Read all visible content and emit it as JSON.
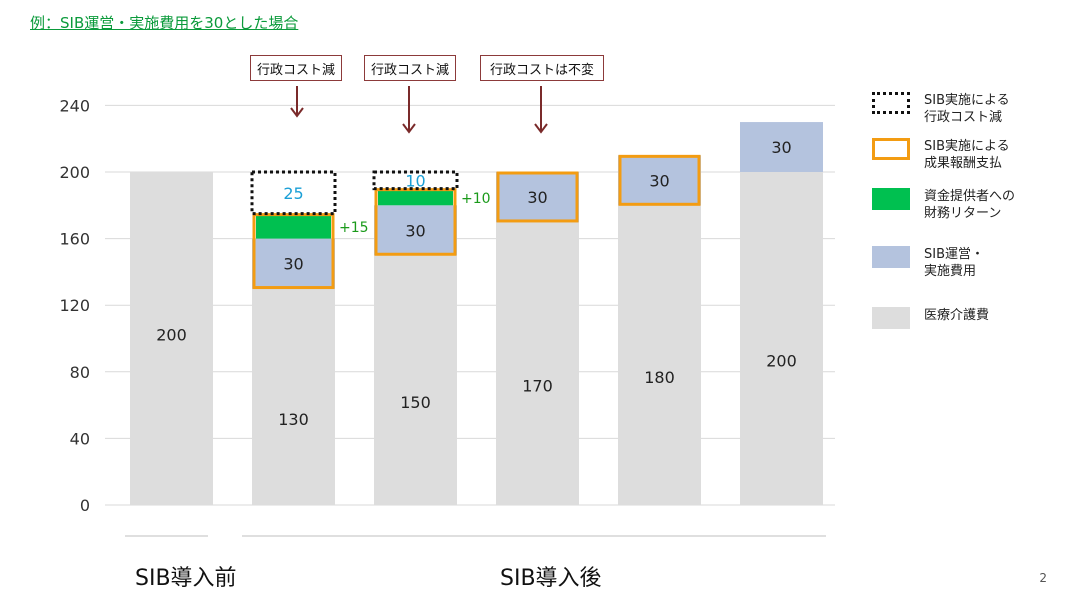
{
  "title": "例：SIB運営・実施費用を30とした場合",
  "page_number": "2",
  "group_labels": [
    "SIB導入前",
    "SIB導入後"
  ],
  "callouts": [
    "行政コスト減",
    "行政コスト減",
    "行政コストは不変"
  ],
  "legend": [
    {
      "label_lines": [
        "SIB実施による",
        "行政コスト減"
      ],
      "style": "dotted-black"
    },
    {
      "label_lines": [
        "SIB実施による",
        "成果報酬支払"
      ],
      "style": "outline-orange"
    },
    {
      "label_lines": [
        "資金提供者への",
        "財務リターン"
      ],
      "style": "fill",
      "color": "#00c050"
    },
    {
      "label_lines": [
        "SIB運営・",
        "実施費用"
      ],
      "style": "fill",
      "color": "#b4c3de"
    },
    {
      "label_lines": [
        "医療介護費"
      ],
      "style": "fill",
      "color": "#dddddd"
    }
  ],
  "chart_data": {
    "type": "bar",
    "stacked": true,
    "ylim": [
      0,
      240
    ],
    "yticks": [
      "0",
      "40",
      "80",
      "120",
      "160",
      "200",
      "240"
    ],
    "grid": true,
    "legend_position": "right",
    "colors": {
      "medical": "#dddddd",
      "sib": "#b4c3de",
      "return": "#00c050",
      "orange": "#f39c12",
      "cut_label": "#1a9fd6",
      "plus_label": "#1a9a1a"
    },
    "bars": [
      {
        "medical": 200,
        "medical_label": "200",
        "sib": 0,
        "sib_label": "",
        "return": 0,
        "return_label": "",
        "cost_reduction": 0,
        "cost_reduction_label": "",
        "performance_payment": false
      },
      {
        "medical": 130,
        "medical_label": "130",
        "sib": 30,
        "sib_label": "30",
        "return": 15,
        "return_label": "+15",
        "cost_reduction": 25,
        "cost_reduction_label": "25",
        "performance_payment": true
      },
      {
        "medical": 150,
        "medical_label": "150",
        "sib": 30,
        "sib_label": "30",
        "return": 10,
        "return_label": "+10",
        "cost_reduction": 10,
        "cost_reduction_label": "10",
        "performance_payment": true
      },
      {
        "medical": 170,
        "medical_label": "170",
        "sib": 30,
        "sib_label": "30",
        "return": 0,
        "return_label": "",
        "cost_reduction": 0,
        "cost_reduction_label": "",
        "performance_payment": true
      },
      {
        "medical": 180,
        "medical_label": "180",
        "sib": 30,
        "sib_label": "30",
        "return": 0,
        "return_label": "",
        "cost_reduction": 0,
        "cost_reduction_label": "",
        "performance_payment": true
      },
      {
        "medical": 200,
        "medical_label": "200",
        "sib": 30,
        "sib_label": "30",
        "return": 0,
        "return_label": "",
        "cost_reduction": 0,
        "cost_reduction_label": "",
        "performance_payment": false
      }
    ]
  }
}
